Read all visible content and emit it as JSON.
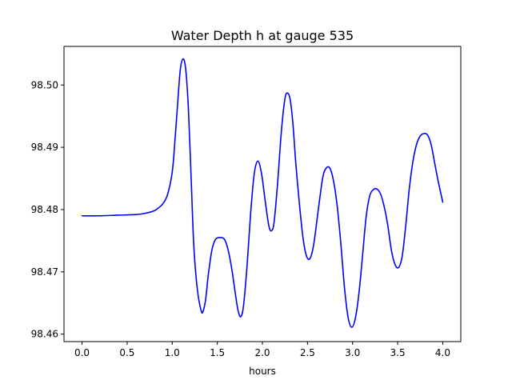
{
  "chart_data": {
    "type": "line",
    "title": "Water Depth h at gauge 535",
    "xlabel": "hours",
    "ylabel": "",
    "xlim": [
      -0.2,
      4.2
    ],
    "ylim": [
      98.4588,
      98.5062
    ],
    "xticks": [
      0.0,
      0.5,
      1.0,
      1.5,
      2.0,
      2.5,
      3.0,
      3.5,
      4.0
    ],
    "xtick_labels": [
      "0.0",
      "0.5",
      "1.0",
      "1.5",
      "2.0",
      "2.5",
      "3.0",
      "3.5",
      "4.0"
    ],
    "yticks": [
      98.46,
      98.47,
      98.48,
      98.49,
      98.5
    ],
    "ytick_labels": [
      "98.46",
      "98.47",
      "98.48",
      "98.49",
      "98.50"
    ],
    "grid": false,
    "series": [
      {
        "color": "#0000ff",
        "x": [
          0.0,
          0.2,
          0.4,
          0.6,
          0.7,
          0.8,
          0.85,
          0.9,
          0.95,
          1.0,
          1.03,
          1.06,
          1.09,
          1.12,
          1.15,
          1.18,
          1.21,
          1.24,
          1.28,
          1.32,
          1.34,
          1.37,
          1.4,
          1.44,
          1.48,
          1.53,
          1.58,
          1.62,
          1.66,
          1.7,
          1.73,
          1.76,
          1.79,
          1.83,
          1.87,
          1.91,
          1.95,
          1.99,
          2.03,
          2.07,
          2.1,
          2.13,
          2.17,
          2.21,
          2.25,
          2.28,
          2.31,
          2.34,
          2.37,
          2.41,
          2.45,
          2.49,
          2.53,
          2.57,
          2.62,
          2.67,
          2.71,
          2.75,
          2.79,
          2.83,
          2.87,
          2.91,
          2.95,
          2.99,
          3.03,
          3.07,
          3.11,
          3.15,
          3.19,
          3.23,
          3.27,
          3.31,
          3.35,
          3.39,
          3.43,
          3.47,
          3.51,
          3.55,
          3.59,
          3.63,
          3.67,
          3.71,
          3.75,
          3.79,
          3.83,
          3.87,
          3.91,
          3.95,
          4.0
        ],
        "y": [
          98.479,
          98.479,
          98.4791,
          98.4792,
          98.4794,
          98.4798,
          98.4803,
          98.481,
          98.4825,
          98.486,
          98.491,
          98.497,
          98.5025,
          98.5042,
          98.5025,
          98.496,
          98.485,
          98.474,
          98.467,
          98.4638,
          98.4636,
          98.4655,
          98.4695,
          98.4735,
          98.4752,
          98.4755,
          98.4752,
          98.4735,
          98.4705,
          98.4665,
          98.4638,
          98.4628,
          98.4645,
          98.471,
          98.4795,
          98.4858,
          98.4878,
          98.4858,
          98.4815,
          98.4775,
          98.4766,
          98.478,
          98.4845,
          98.4925,
          98.4978,
          98.4987,
          98.4975,
          98.4935,
          98.4875,
          98.481,
          98.4755,
          98.4725,
          98.4722,
          98.4745,
          98.48,
          98.4852,
          98.4867,
          98.4866,
          98.4845,
          98.4805,
          98.4745,
          98.4675,
          98.4627,
          98.4611,
          98.4625,
          98.4665,
          98.4725,
          98.4788,
          98.4822,
          98.4832,
          98.4833,
          98.4825,
          98.4805,
          98.4775,
          98.4735,
          98.4712,
          98.4707,
          98.4725,
          98.4775,
          98.4835,
          98.4878,
          98.4905,
          98.4918,
          98.4922,
          98.492,
          98.4905,
          98.4875,
          98.4845,
          98.4812
        ]
      }
    ]
  }
}
